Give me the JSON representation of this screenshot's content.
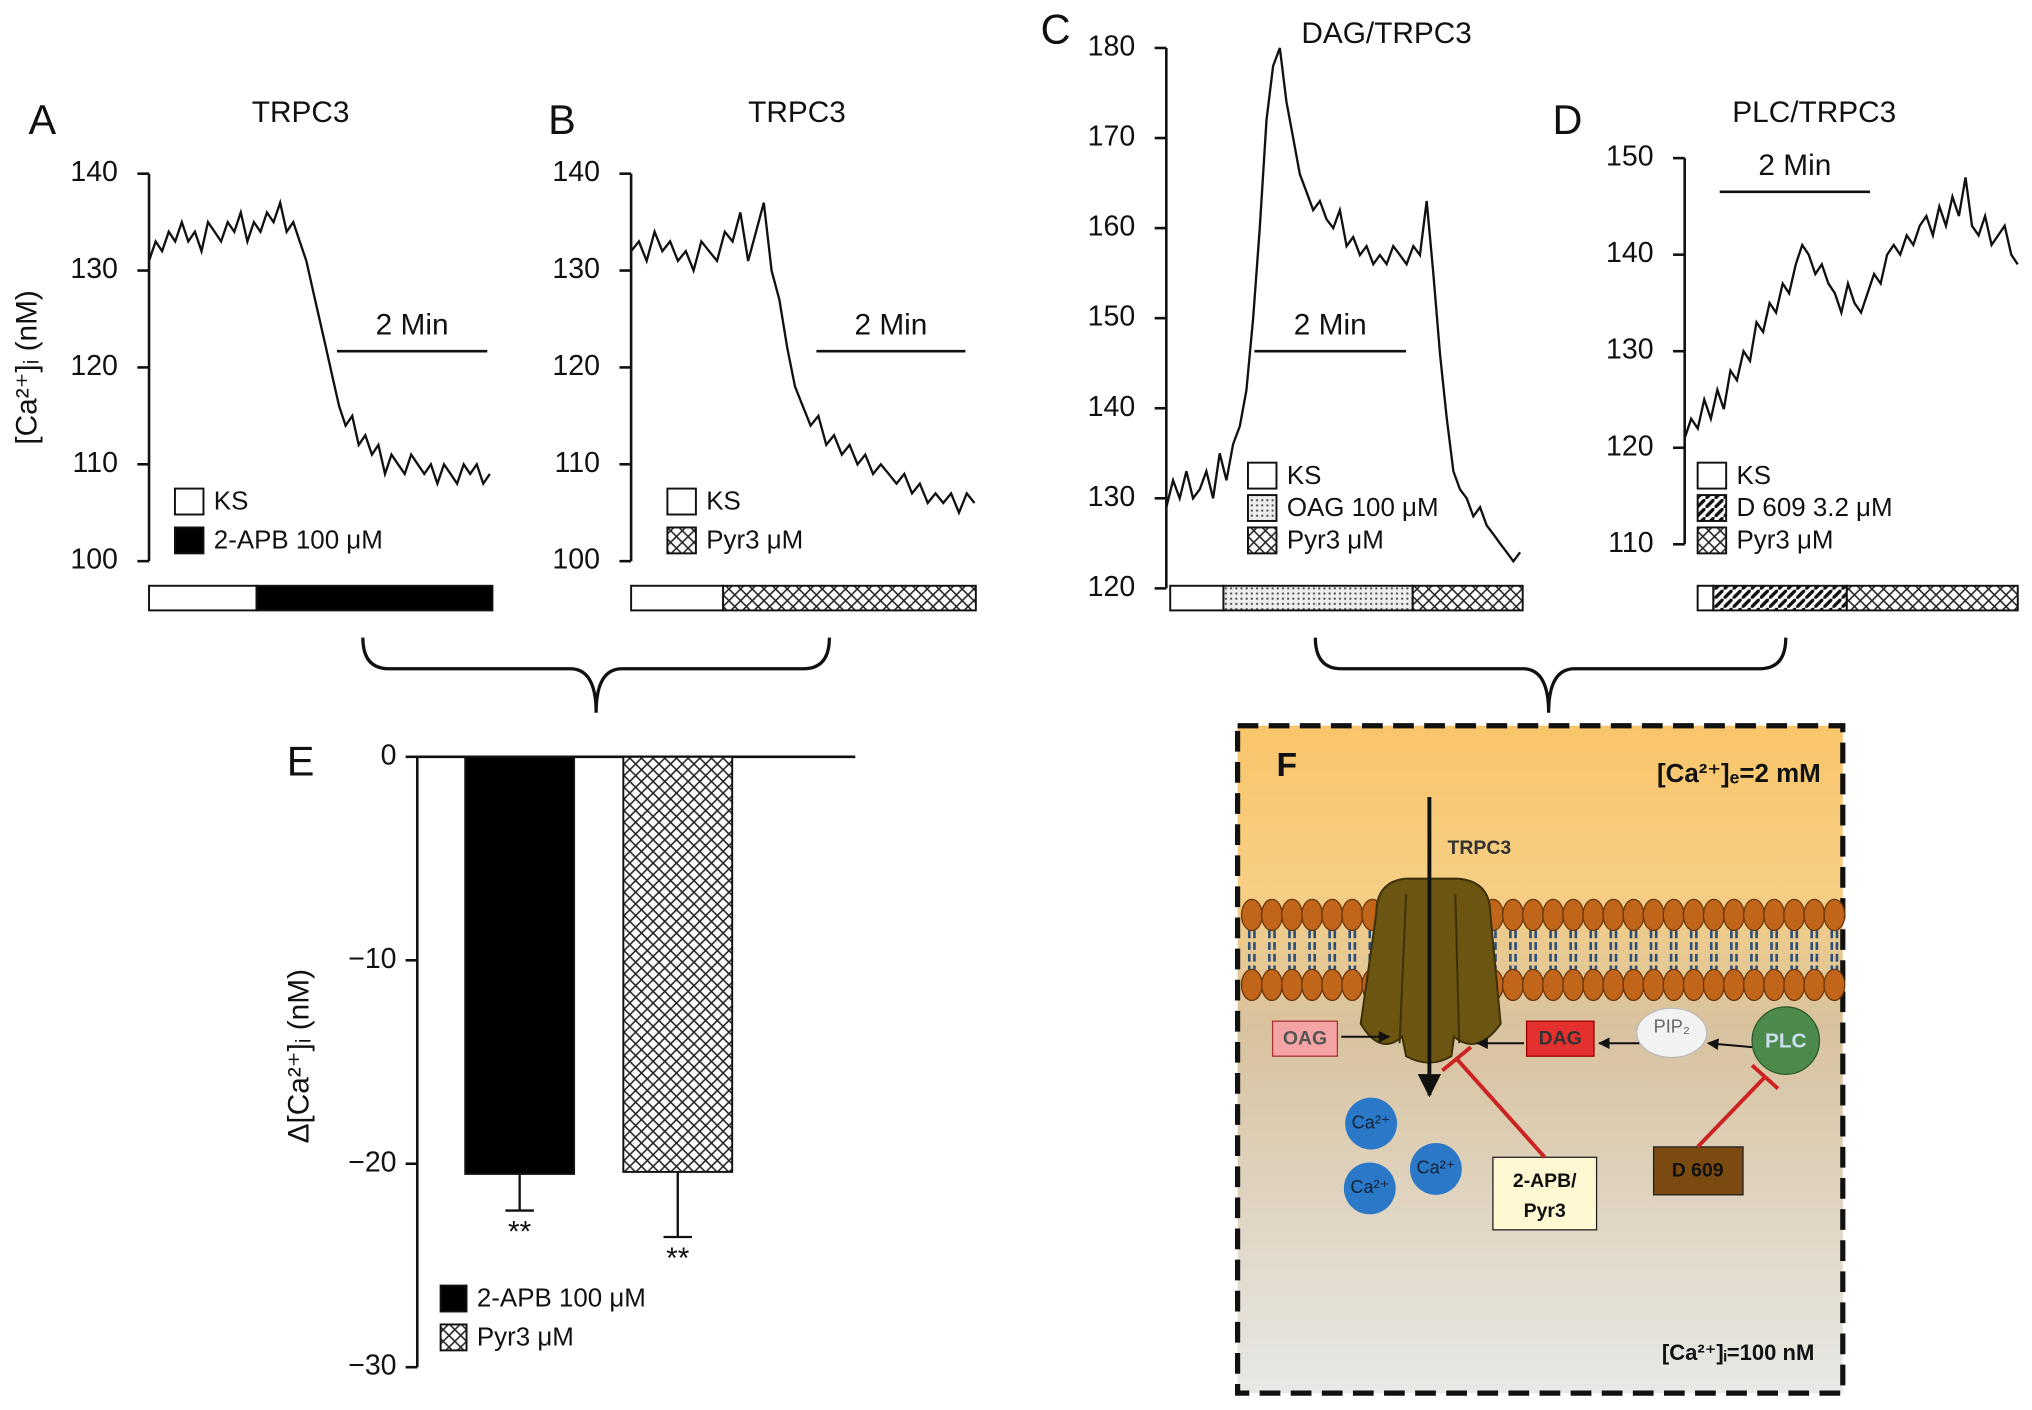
{
  "chart_data": [
    {
      "type": "line",
      "panel": "A",
      "title": "TRPC3",
      "ylabel": "[Ca²⁺]ᵢ (nM)",
      "ylim": [
        100,
        140
      ],
      "yticks": [
        100,
        110,
        120,
        130,
        140
      ],
      "color": "#111",
      "scale_bar": "2 Min",
      "legend": [
        {
          "name": "KS",
          "pattern": "blank"
        },
        {
          "name": "2-APB 100 μM",
          "pattern": "solid"
        }
      ],
      "values": [
        131,
        133,
        132,
        134,
        133,
        135,
        133,
        134,
        132,
        135,
        134,
        133,
        135,
        134,
        136,
        133,
        135,
        134,
        136,
        135,
        137,
        134,
        135,
        133,
        131,
        128,
        125,
        122,
        119,
        116,
        114,
        115,
        112,
        113,
        111,
        112,
        109,
        111,
        110,
        109,
        111,
        110,
        109,
        110,
        108,
        110,
        109,
        108,
        110,
        109,
        110,
        108,
        109
      ]
    },
    {
      "type": "line",
      "panel": "B",
      "title": "TRPC3",
      "ylim": [
        100,
        140
      ],
      "yticks": [
        100,
        110,
        120,
        130,
        140
      ],
      "color": "#111",
      "scale_bar": "2 Min",
      "legend": [
        {
          "name": "KS",
          "pattern": "blank"
        },
        {
          "name": "Pyr3 μM",
          "pattern": "crosshatch"
        }
      ],
      "values": [
        132,
        133,
        131,
        134,
        132,
        133,
        131,
        132,
        130,
        133,
        132,
        131,
        134,
        133,
        136,
        131,
        134,
        137,
        130,
        127,
        122,
        118,
        116,
        114,
        115,
        112,
        113,
        111,
        112,
        110,
        111,
        109,
        110,
        109,
        108,
        109,
        107,
        108,
        106,
        107,
        106,
        107,
        105,
        107,
        106
      ]
    },
    {
      "type": "line",
      "panel": "C",
      "title": "DAG/TRPC3",
      "ylim": [
        120,
        180
      ],
      "yticks": [
        120,
        130,
        140,
        150,
        160,
        170,
        180
      ],
      "color": "#111",
      "scale_bar": "2 Min",
      "legend": [
        {
          "name": "KS",
          "pattern": "blank"
        },
        {
          "name": "OAG 100 μM",
          "pattern": "dots"
        },
        {
          "name": "Pyr3 μM",
          "pattern": "crosshatch"
        }
      ],
      "values": [
        129,
        132,
        130,
        133,
        130,
        131,
        133,
        130,
        135,
        132,
        136,
        138,
        142,
        150,
        160,
        172,
        178,
        180,
        174,
        170,
        166,
        164,
        162,
        163,
        161,
        160,
        162,
        158,
        159,
        157,
        158,
        156,
        157,
        156,
        158,
        157,
        156,
        158,
        157,
        163,
        155,
        146,
        139,
        133,
        131,
        130,
        128,
        129,
        127,
        126,
        125,
        124,
        123,
        124
      ]
    },
    {
      "type": "line",
      "panel": "D",
      "title": "PLC/TRPC3",
      "ylim": [
        110,
        150
      ],
      "yticks": [
        110,
        120,
        130,
        140,
        150
      ],
      "color": "#111",
      "scale_bar": "2 Min",
      "legend": [
        {
          "name": "KS",
          "pattern": "blank"
        },
        {
          "name": "D 609 3.2 μM",
          "pattern": "diagonal"
        },
        {
          "name": "Pyr3 μM",
          "pattern": "crosshatch"
        }
      ],
      "values": [
        121,
        123,
        122,
        125,
        123,
        126,
        124,
        128,
        127,
        130,
        129,
        133,
        132,
        135,
        134,
        137,
        136,
        139,
        141,
        140,
        138,
        139,
        137,
        136,
        134,
        137,
        135,
        134,
        136,
        138,
        137,
        140,
        141,
        140,
        142,
        141,
        143,
        144,
        142,
        145,
        143,
        146,
        144,
        148,
        143,
        142,
        144,
        141,
        142,
        143,
        140,
        139
      ]
    },
    {
      "type": "bar",
      "panel": "E",
      "ylabel": "Δ[Ca²⁺]ᵢ (nM)",
      "ylim": [
        -30,
        0
      ],
      "yticks": [
        0,
        {
          "value": -10,
          "label": "−10"
        },
        {
          "value": -20,
          "label": "−20"
        },
        {
          "value": -30,
          "label": "−30"
        }
      ],
      "series": [
        {
          "name": "2-APB 100 μM",
          "pattern": "solid",
          "values": [
            -20.5
          ],
          "errors": [
            1.8
          ],
          "significance": "**"
        },
        {
          "name": "Pyr3 μM",
          "pattern": "crosshatch",
          "values": [
            -20.4
          ],
          "errors": [
            3.2
          ],
          "significance": "**"
        }
      ]
    }
  ],
  "diagram": {
    "label": "F",
    "ca_out": "[Ca²⁺]ₑ=2 mM",
    "channel": "TRPC3",
    "ca_in": "[Ca²⁺]ᵢ=100 nM",
    "nodes": [
      "OAG",
      "DAG",
      "PIP₂",
      "PLC",
      "D 609"
    ],
    "inhibitor": [
      "2-APB/",
      "Pyr3"
    ],
    "ions": [
      "Ca²⁺",
      "Ca²⁺",
      "Ca²⁺"
    ]
  }
}
